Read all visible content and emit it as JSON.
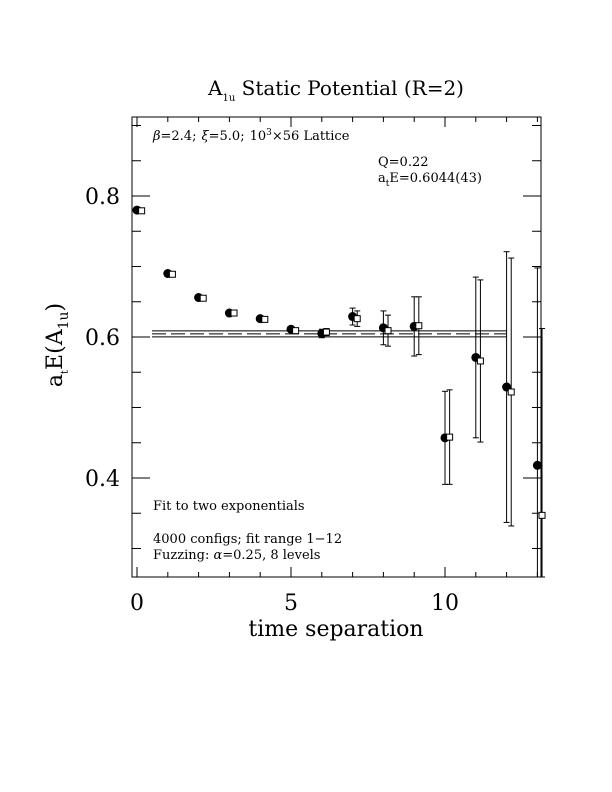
{
  "chart_data": {
    "type": "scatter",
    "title": {
      "main": "A",
      "sub": "1u",
      "rest": " Static Potential (R=2)"
    },
    "xlabel": "time separation",
    "ylabel": {
      "a": "a",
      "t": "t",
      "e": "E(A",
      "sub": "1u",
      "close": ")"
    },
    "xlim": [
      0,
      13
    ],
    "ylim": [
      0.26,
      0.92
    ],
    "xticks": [
      0,
      5,
      10
    ],
    "yticks": [
      0.4,
      0.6,
      0.8
    ],
    "xtick_labels": [
      "0",
      "5",
      "10"
    ],
    "ytick_labels": [
      "0.4",
      "0.6",
      "0.8"
    ],
    "annotations": {
      "lattice": {
        "beta": "β",
        "eq1": "=2.4;",
        "xi": "ξ",
        "eq2": "=5.0;",
        "size": "10",
        "exp": "3",
        "rest": "×56 Lattice"
      },
      "q": "Q=0.22",
      "fit_value": {
        "a": "a",
        "t": "t",
        "rest": "E=0.6044(43)"
      },
      "fit_type": "Fit to two exponentials",
      "configs": "4000 configs; fit range 1−12",
      "fuzzing": {
        "pre": "Fuzzing: ",
        "alpha": "α",
        "post": "=0.25, 8 levels"
      }
    },
    "fit": {
      "value": 0.6044,
      "error": 0.0043,
      "x_range": [
        0,
        11.5
      ]
    },
    "series": [
      {
        "marker": "filled-circle",
        "points": [
          {
            "x": 0,
            "y": 0.78,
            "err": 0.002
          },
          {
            "x": 1,
            "y": 0.69,
            "err": 0.002
          },
          {
            "x": 2,
            "y": 0.656,
            "err": 0.002
          },
          {
            "x": 3,
            "y": 0.634,
            "err": 0.002
          },
          {
            "x": 4,
            "y": 0.626,
            "err": 0.003
          },
          {
            "x": 5,
            "y": 0.611,
            "err": 0.003
          },
          {
            "x": 6,
            "y": 0.605,
            "err": 0.006
          },
          {
            "x": 7,
            "y": 0.629,
            "err": 0.012
          },
          {
            "x": 8,
            "y": 0.613,
            "err": 0.024
          },
          {
            "x": 9,
            "y": 0.615,
            "err": 0.042
          },
          {
            "x": 10,
            "y": 0.457,
            "err": 0.066
          },
          {
            "x": 11,
            "y": 0.571,
            "err": 0.114
          },
          {
            "x": 12,
            "y": 0.529,
            "err": 0.192
          },
          {
            "x": 13,
            "y": 0.418,
            "err": 0.28
          }
        ]
      },
      {
        "marker": "open-square",
        "x_offset": 0.15,
        "points": [
          {
            "x": 0,
            "y": 0.779,
            "err": 0.002
          },
          {
            "x": 1,
            "y": 0.689,
            "err": 0.002
          },
          {
            "x": 2,
            "y": 0.655,
            "err": 0.002
          },
          {
            "x": 3,
            "y": 0.634,
            "err": 0.002
          },
          {
            "x": 4,
            "y": 0.625,
            "err": 0.002
          },
          {
            "x": 5,
            "y": 0.609,
            "err": 0.002
          },
          {
            "x": 6,
            "y": 0.607,
            "err": 0.005
          },
          {
            "x": 7,
            "y": 0.626,
            "err": 0.011
          },
          {
            "x": 8,
            "y": 0.609,
            "err": 0.022
          },
          {
            "x": 9,
            "y": 0.616,
            "err": 0.041
          },
          {
            "x": 10,
            "y": 0.458,
            "err": 0.067
          },
          {
            "x": 11,
            "y": 0.566,
            "err": 0.115
          },
          {
            "x": 12,
            "y": 0.522,
            "err": 0.19
          },
          {
            "x": 13,
            "y": 0.347,
            "err": 0.265
          }
        ]
      }
    ]
  }
}
